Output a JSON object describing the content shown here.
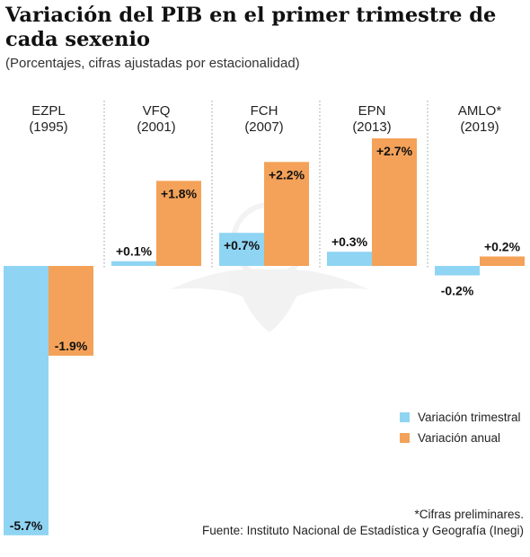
{
  "header": {
    "title": "Variación del PIB en el primer trimestre de cada sexenio",
    "subtitle": "(Porcentajes, cifras ajustadas por estacionalidad)"
  },
  "chart_data": {
    "type": "bar",
    "title": "Variación del PIB en el primer trimestre de cada sexenio",
    "subtitle": "(Porcentajes, cifras ajustadas por estacionalidad)",
    "categories": [
      {
        "name": "EZPL",
        "year": "(1995)"
      },
      {
        "name": "VFQ",
        "year": "(2001)"
      },
      {
        "name": "FCH",
        "year": "(2007)"
      },
      {
        "name": "EPN",
        "year": "(2013)"
      },
      {
        "name": "AMLO*",
        "year": "(2019)"
      }
    ],
    "series": [
      {
        "name": "Variación trimestral",
        "color": "#8fd4f3",
        "values": [
          -5.7,
          0.1,
          0.7,
          0.3,
          -0.2
        ],
        "labels": [
          "-5.7%",
          "+0.1%",
          "+0.7%",
          "+0.3%",
          "-0.2%"
        ]
      },
      {
        "name": "Variación anual",
        "color": "#f4a259",
        "values": [
          -1.9,
          1.8,
          2.2,
          2.7,
          0.2
        ],
        "labels": [
          "-1.9%",
          "+1.8%",
          "+2.2%",
          "+2.7%",
          "+0.2%"
        ]
      }
    ],
    "xlabel": "",
    "ylabel": "",
    "ylim": [
      -5.7,
      2.7
    ],
    "grid": false,
    "legend": "bottom-right"
  },
  "notes": {
    "preliminary": "*Cifras preliminares.",
    "source": "Fuente: Instituto Nacional de Estadística y Geografía (Inegi)"
  }
}
